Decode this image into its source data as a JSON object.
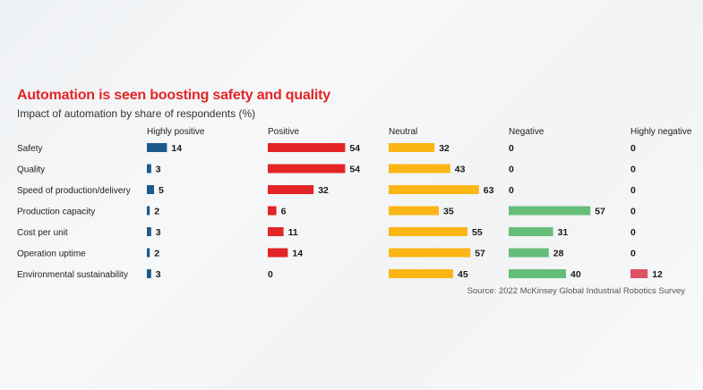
{
  "title": "Automation is seen boosting safety and quality",
  "subtitle": "Impact of automation by share of respondents (%)",
  "source": "Source: 2022 McKinsey Global Industrial Robotics Survey",
  "chart_data": {
    "type": "bar",
    "orientation": "horizontal",
    "categories": [
      "Safety",
      "Quality",
      "Speed of production/delivery",
      "Production capacity",
      "Cost per unit",
      "Operation uptime",
      "Environmental sustainability"
    ],
    "series": [
      {
        "name": "Highly positive",
        "color": "#1b5a8c",
        "values": [
          14,
          3,
          5,
          2,
          3,
          2,
          3
        ]
      },
      {
        "name": "Positive",
        "color": "#e32526",
        "values": [
          54,
          54,
          32,
          6,
          11,
          14,
          0
        ]
      },
      {
        "name": "Neutral",
        "color": "#fbb616",
        "values": [
          32,
          43,
          63,
          35,
          55,
          57,
          45
        ]
      },
      {
        "name": "Negative",
        "color": "#65be78",
        "values": [
          0,
          0,
          0,
          57,
          31,
          28,
          40
        ]
      },
      {
        "name": "Highly negative",
        "color": "#dc5368",
        "values": [
          0,
          0,
          0,
          0,
          0,
          0,
          12
        ]
      }
    ],
    "unit": "%"
  }
}
